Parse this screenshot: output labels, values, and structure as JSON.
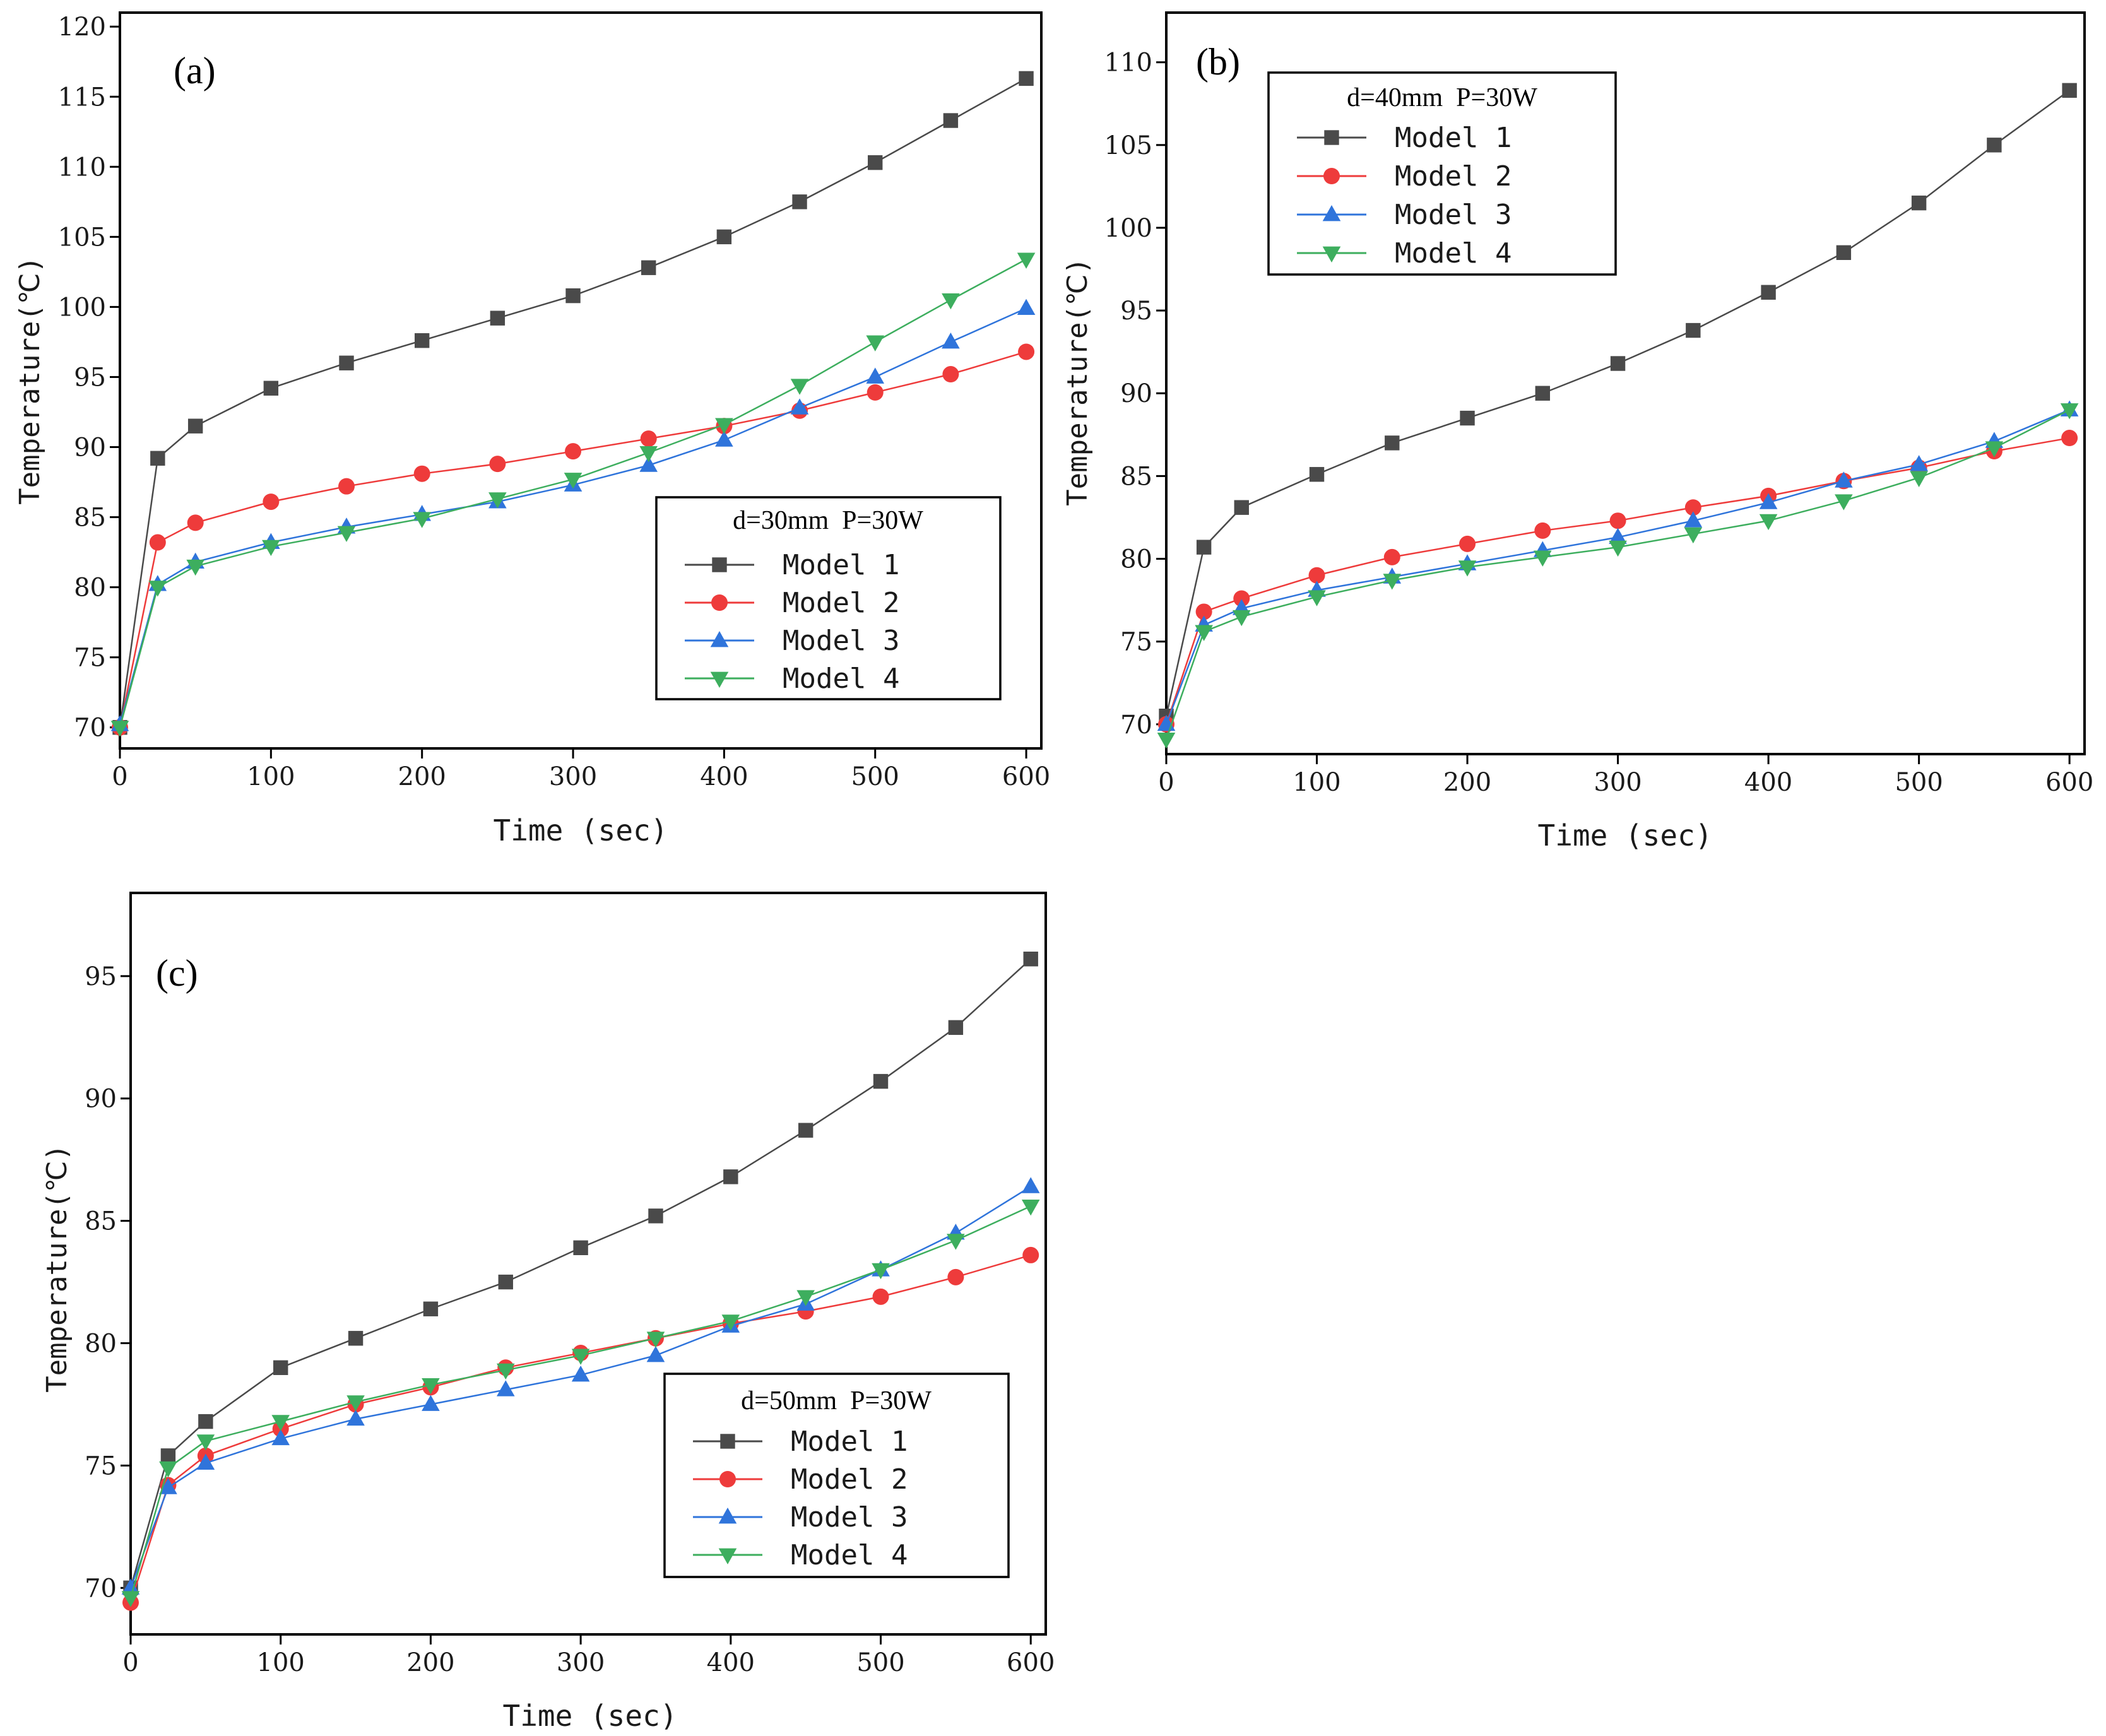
{
  "colors": {
    "model1": "#4a4a4a",
    "model2": "#ee3b3b",
    "model3": "#2f74db",
    "model4": "#3dae5e"
  },
  "chart_data": [
    {
      "type": "line",
      "panel": "(a)",
      "legend_title": "d=30mm  P=30W",
      "xlabel": "Time (sec)",
      "ylabel": "Temperature(℃)",
      "xlim": [
        0,
        610
      ],
      "ylim": [
        68.5,
        121
      ],
      "xticks": [
        0,
        100,
        200,
        300,
        400,
        500,
        600
      ],
      "yticks": [
        70,
        75,
        80,
        85,
        90,
        95,
        100,
        105,
        110,
        115,
        120
      ],
      "x": [
        0,
        25,
        50,
        100,
        150,
        200,
        250,
        300,
        350,
        400,
        450,
        500,
        550,
        600
      ],
      "series": [
        {
          "name": "Model 1",
          "marker": "square",
          "color": "#4a4a4a",
          "values": [
            70.0,
            89.2,
            91.5,
            94.2,
            96.0,
            97.6,
            99.2,
            100.8,
            102.8,
            105.0,
            107.5,
            110.3,
            113.3,
            116.3
          ]
        },
        {
          "name": "Model 2",
          "marker": "circle",
          "color": "#ee3b3b",
          "values": [
            70.0,
            83.2,
            84.6,
            86.1,
            87.2,
            88.1,
            88.8,
            89.7,
            90.6,
            91.5,
            92.6,
            93.9,
            95.2,
            96.8
          ]
        },
        {
          "name": "Model 3",
          "marker": "triangle-up",
          "color": "#2f74db",
          "values": [
            70.2,
            80.2,
            81.8,
            83.2,
            84.3,
            85.2,
            86.1,
            87.3,
            88.7,
            90.5,
            92.8,
            95.0,
            97.5,
            99.9
          ]
        },
        {
          "name": "Model 4",
          "marker": "triangle-down",
          "color": "#3dae5e",
          "values": [
            70.0,
            80.0,
            81.5,
            82.9,
            83.9,
            84.9,
            86.3,
            87.7,
            89.6,
            91.6,
            94.4,
            97.5,
            100.5,
            103.4
          ]
        }
      ]
    },
    {
      "type": "line",
      "panel": "(b)",
      "legend_title": "d=40mm  P=30W",
      "xlabel": "Time (sec)",
      "ylabel": "Temperature(℃)",
      "xlim": [
        0,
        610
      ],
      "ylim": [
        68.2,
        113
      ],
      "xticks": [
        0,
        100,
        200,
        300,
        400,
        500,
        600
      ],
      "yticks": [
        70,
        75,
        80,
        85,
        90,
        95,
        100,
        105,
        110
      ],
      "x": [
        0,
        25,
        50,
        100,
        150,
        200,
        250,
        300,
        350,
        400,
        450,
        500,
        550,
        600
      ],
      "series": [
        {
          "name": "Model 1",
          "marker": "square",
          "color": "#4a4a4a",
          "values": [
            70.5,
            80.7,
            83.1,
            85.1,
            87.0,
            88.5,
            90.0,
            91.8,
            93.8,
            96.1,
            98.5,
            101.5,
            105.0,
            108.3
          ]
        },
        {
          "name": "Model 2",
          "marker": "circle",
          "color": "#ee3b3b",
          "values": [
            70.0,
            76.8,
            77.6,
            79.0,
            80.1,
            80.9,
            81.7,
            82.3,
            83.1,
            83.8,
            84.7,
            85.5,
            86.5,
            87.3
          ]
        },
        {
          "name": "Model 3",
          "marker": "triangle-up",
          "color": "#2f74db",
          "values": [
            70.0,
            76.0,
            77.0,
            78.1,
            78.9,
            79.7,
            80.5,
            81.3,
            82.3,
            83.4,
            84.7,
            85.7,
            87.1,
            89.0
          ]
        },
        {
          "name": "Model 4",
          "marker": "triangle-down",
          "color": "#3dae5e",
          "values": [
            69.1,
            75.6,
            76.5,
            77.7,
            78.7,
            79.5,
            80.1,
            80.7,
            81.5,
            82.3,
            83.5,
            84.9,
            86.7,
            89.0
          ]
        }
      ]
    },
    {
      "type": "line",
      "panel": "(c)",
      "legend_title": "d=50mm  P=30W",
      "xlabel": "Time (sec)",
      "ylabel": "Temperature(℃)",
      "xlim": [
        0,
        610
      ],
      "ylim": [
        68.1,
        98.4
      ],
      "xticks": [
        0,
        100,
        200,
        300,
        400,
        500,
        600
      ],
      "yticks": [
        70,
        75,
        80,
        85,
        90,
        95
      ],
      "x": [
        0,
        25,
        50,
        100,
        150,
        200,
        250,
        300,
        350,
        400,
        450,
        500,
        550,
        600
      ],
      "series": [
        {
          "name": "Model 1",
          "marker": "square",
          "color": "#4a4a4a",
          "values": [
            70.0,
            75.4,
            76.8,
            79.0,
            80.2,
            81.4,
            82.5,
            83.9,
            85.2,
            86.8,
            88.7,
            90.7,
            92.9,
            95.7
          ]
        },
        {
          "name": "Model 2",
          "marker": "circle",
          "color": "#ee3b3b",
          "values": [
            69.4,
            74.2,
            75.4,
            76.5,
            77.5,
            78.2,
            79.0,
            79.6,
            80.2,
            80.8,
            81.3,
            81.9,
            82.7,
            83.6
          ]
        },
        {
          "name": "Model 3",
          "marker": "triangle-up",
          "color": "#2f74db",
          "values": [
            70.0,
            74.1,
            75.1,
            76.1,
            76.9,
            77.5,
            78.1,
            78.7,
            79.5,
            80.7,
            81.6,
            83.0,
            84.5,
            86.4
          ]
        },
        {
          "name": "Model 4",
          "marker": "triangle-down",
          "color": "#3dae5e",
          "values": [
            69.6,
            74.9,
            76.0,
            76.8,
            77.6,
            78.3,
            78.9,
            79.5,
            80.2,
            80.9,
            81.9,
            83.0,
            84.2,
            85.6
          ]
        }
      ]
    }
  ]
}
